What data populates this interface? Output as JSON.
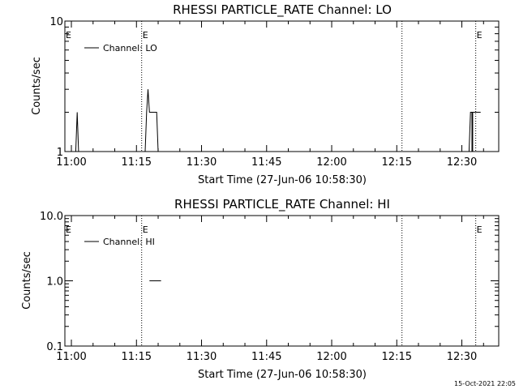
{
  "chart_data": [
    {
      "type": "line",
      "title": "RHESSI PARTICLE_RATE Channel: LO",
      "xlabel": "Start Time (27-Jun-06 10:58:30)",
      "ylabel": "Counts/sec",
      "y_scale": "log",
      "xlim": [
        "10:58:30",
        "12:38:30"
      ],
      "ylim": [
        1,
        10
      ],
      "x_tick_labels": [
        "11:00",
        "11:15",
        "11:30",
        "11:45",
        "12:00",
        "12:15",
        "12:30"
      ],
      "y_tick_labels": [
        "1",
        "10"
      ],
      "legend": {
        "entries": [
          "Channel: LO"
        ],
        "placement": "top-left"
      },
      "grid": false,
      "event_markers": [
        {
          "time": "11:16:12",
          "label": "E"
        },
        {
          "time": "12:16:12",
          "label": ""
        },
        {
          "time": "12:33:12",
          "label": "E"
        }
      ],
      "series": [
        {
          "name": "Channel: LO",
          "segments": [
            [
              [
                "11:01:00",
                1
              ],
              [
                "11:01:20",
                2
              ],
              [
                "11:01:40",
                1
              ]
            ],
            [
              [
                "11:17:00",
                1
              ],
              [
                "11:17:20",
                2
              ],
              [
                "11:17:40",
                3
              ],
              [
                "11:18:00",
                2
              ],
              [
                "11:19:40",
                2
              ],
              [
                "11:20:00",
                1
              ]
            ],
            [
              [
                "12:31:40",
                1
              ],
              [
                "12:32:00",
                2
              ],
              [
                "12:32:20",
                2
              ],
              [
                "12:32:20",
                1
              ],
              [
                "12:32:30",
                1
              ],
              [
                "12:32:30",
                2
              ],
              [
                "12:34:20",
                2
              ]
            ]
          ]
        }
      ]
    },
    {
      "type": "line",
      "title": "RHESSI PARTICLE_RATE Channel: HI",
      "xlabel": "Start Time (27-Jun-06 10:58:30)",
      "ylabel": "Counts/sec",
      "y_scale": "log",
      "xlim": [
        "10:58:30",
        "12:38:30"
      ],
      "ylim": [
        0.1,
        10
      ],
      "x_tick_labels": [
        "11:00",
        "11:15",
        "11:30",
        "11:45",
        "12:00",
        "12:15",
        "12:30"
      ],
      "y_tick_labels": [
        "0.1",
        "1.0",
        "10.0"
      ],
      "legend": {
        "entries": [
          "Channel: HI"
        ],
        "placement": "top-left"
      },
      "grid": false,
      "event_markers": [
        {
          "time": "11:16:12",
          "label": "E"
        },
        {
          "time": "12:16:12",
          "label": ""
        },
        {
          "time": "12:33:12",
          "label": "E"
        }
      ],
      "series": [
        {
          "name": "Channel: HI",
          "segments": [
            [
              [
                "11:18:00",
                1
              ],
              [
                "11:20:40",
                1
              ]
            ]
          ]
        }
      ]
    }
  ],
  "footer": {
    "timestamp": "15-Oct-2021 22:05"
  }
}
